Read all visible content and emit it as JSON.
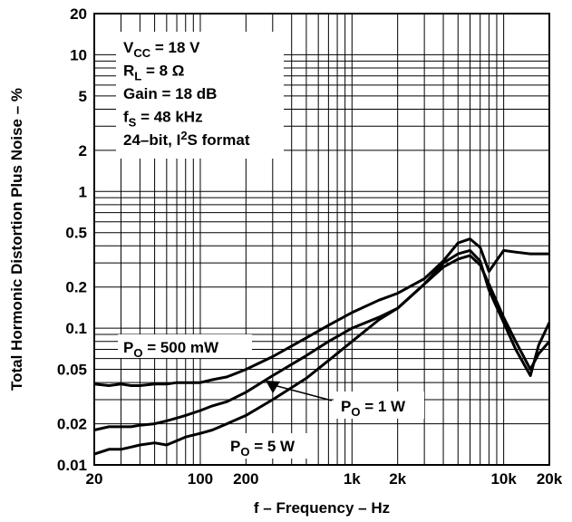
{
  "chart_data": {
    "type": "line",
    "x_scale": "log",
    "y_scale": "log",
    "xlim": [
      20,
      20000
    ],
    "ylim": [
      0.01,
      20
    ],
    "grid": true,
    "xlabel": "f – Frequency – Hz",
    "ylabel": "Total Hormonic Distortion Plus Noise – %",
    "x_ticks": [
      20,
      100,
      200,
      1000,
      2000,
      10000,
      20000
    ],
    "x_tick_labels": [
      "20",
      "100",
      "200",
      "1k",
      "2k",
      "10k",
      "20k"
    ],
    "y_ticks": [
      0.01,
      0.02,
      0.05,
      0.1,
      0.2,
      0.5,
      1,
      2,
      5,
      10,
      20
    ],
    "y_tick_labels": [
      "0.01",
      "0.02",
      "0.05",
      "0.1",
      "0.2",
      "0.5",
      "1",
      "2",
      "5",
      "10",
      "20"
    ],
    "conditions": [
      {
        "main": "V",
        "sub": "CC",
        "rest": " = 18 V"
      },
      {
        "main": "R",
        "sub": "L",
        "rest": " = 8 Ω"
      },
      {
        "main": "Gain = 18 dB",
        "sub": "",
        "rest": ""
      },
      {
        "main": "f",
        "sub": "S",
        "rest": " = 48 kHz"
      },
      {
        "main": "24–bit, I",
        "sup": "2",
        "rest": "S format"
      }
    ],
    "series": [
      {
        "name": "P_O = 500 mW",
        "label_main": "P",
        "label_sub": "O",
        "label_rest": " = 500 mW",
        "x": [
          20,
          25,
          30,
          35,
          40,
          50,
          60,
          70,
          80,
          100,
          120,
          150,
          200,
          300,
          500,
          700,
          1000,
          1500,
          2000,
          3000,
          4000,
          5000,
          6000,
          7000,
          8000,
          10000,
          12000,
          15000,
          17000,
          20000
        ],
        "y": [
          0.039,
          0.038,
          0.039,
          0.038,
          0.038,
          0.039,
          0.039,
          0.04,
          0.04,
          0.04,
          0.042,
          0.044,
          0.05,
          0.062,
          0.085,
          0.105,
          0.13,
          0.16,
          0.18,
          0.23,
          0.31,
          0.42,
          0.45,
          0.39,
          0.26,
          0.37,
          0.36,
          0.35,
          0.35,
          0.35
        ]
      },
      {
        "name": "P_O = 1 W",
        "label_main": "P",
        "label_sub": "O",
        "label_rest": " = 1 W",
        "x": [
          20,
          25,
          30,
          35,
          40,
          50,
          60,
          70,
          80,
          100,
          120,
          150,
          200,
          300,
          500,
          700,
          1000,
          1500,
          2000,
          3000,
          4000,
          5000,
          6000,
          7000,
          8000,
          10000,
          12000,
          15000,
          17000,
          20000
        ],
        "y": [
          0.018,
          0.019,
          0.019,
          0.019,
          0.0195,
          0.02,
          0.021,
          0.022,
          0.023,
          0.025,
          0.027,
          0.029,
          0.034,
          0.045,
          0.063,
          0.08,
          0.1,
          0.12,
          0.14,
          0.21,
          0.3,
          0.35,
          0.37,
          0.31,
          0.19,
          0.11,
          0.07,
          0.045,
          0.075,
          0.11
        ]
      },
      {
        "name": "P_O = 5 W",
        "label_main": "P",
        "label_sub": "O",
        "label_rest": " = 5 W",
        "x": [
          20,
          25,
          30,
          35,
          40,
          50,
          60,
          70,
          80,
          100,
          120,
          150,
          200,
          300,
          500,
          700,
          1000,
          1500,
          2000,
          3000,
          4000,
          5000,
          6000,
          7000,
          8000,
          10000,
          12000,
          15000,
          17000,
          20000
        ],
        "y": [
          0.012,
          0.013,
          0.013,
          0.0135,
          0.014,
          0.0145,
          0.014,
          0.015,
          0.016,
          0.017,
          0.018,
          0.02,
          0.023,
          0.03,
          0.043,
          0.058,
          0.08,
          0.115,
          0.14,
          0.21,
          0.28,
          0.32,
          0.34,
          0.29,
          0.21,
          0.12,
          0.08,
          0.05,
          0.065,
          0.08
        ]
      }
    ]
  }
}
